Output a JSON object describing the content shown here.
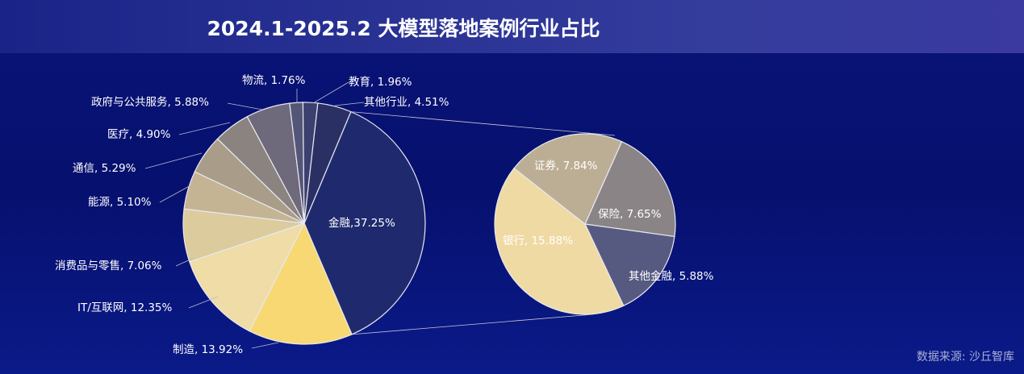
{
  "title": "2024.1-2025.2 大模型落地案例行业占比",
  "source": "数据来源: 沙丘智库",
  "chart_data": {
    "type": "pie",
    "subtype": "pie-of-pie",
    "title": "2024.1-2025.2 大模型落地案例行业占比",
    "unit": "%",
    "main": [
      {
        "label": "金融",
        "value": 37.25,
        "display": "金融,37.25%",
        "color": "#1f2a6e"
      },
      {
        "label": "制造",
        "value": 13.92,
        "display": "制造, 13.92%",
        "color": "#f8d873"
      },
      {
        "label": "IT/互联网",
        "value": 12.35,
        "display": "IT/互联网, 12.35%",
        "color": "#efdca6"
      },
      {
        "label": "消费品与零售",
        "value": 7.06,
        "display": "消费品与零售, 7.06%",
        "color": "#dccb9d"
      },
      {
        "label": "能源",
        "value": 5.1,
        "display": "能源, 5.10%",
        "color": "#c4b493"
      },
      {
        "label": "通信",
        "value": 5.29,
        "display": "通信, 5.29%",
        "color": "#a99d89"
      },
      {
        "label": "医疗",
        "value": 4.9,
        "display": "医疗, 4.90%",
        "color": "#8b8380"
      },
      {
        "label": "政府与公共服务",
        "value": 5.88,
        "display": "政府与公共服务, 5.88%",
        "color": "#6e6a7c"
      },
      {
        "label": "物流",
        "value": 1.76,
        "display": "物流, 1.76%",
        "color": "#545678"
      },
      {
        "label": "教育",
        "value": 1.96,
        "display": "教育, 1.96%",
        "color": "#3c406e"
      },
      {
        "label": "其他行业",
        "value": 4.51,
        "display": "其他行业, 4.51%",
        "color": "#2b3064"
      }
    ],
    "breakdown_of": "金融",
    "secondary": [
      {
        "label": "保险",
        "value": 7.65,
        "display": "保险, 7.65%",
        "color": "#8a8486"
      },
      {
        "label": "其他金融",
        "value": 5.88,
        "display": "其他金融, 5.88%",
        "color": "#575a80"
      },
      {
        "label": "银行",
        "value": 15.88,
        "display": "银行, 15.88%",
        "color": "#efdaa4"
      },
      {
        "label": "证券",
        "value": 7.84,
        "display": "证券, 7.84%",
        "color": "#bcae94"
      }
    ],
    "legend": "none",
    "label_color": "#ffffff"
  }
}
